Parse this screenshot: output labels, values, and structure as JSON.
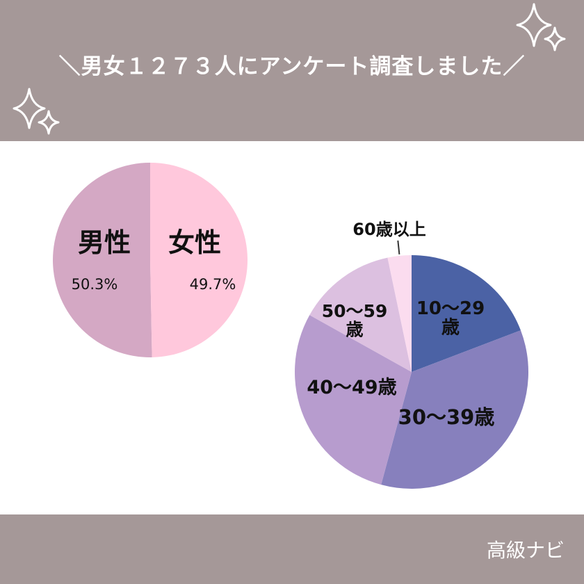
{
  "header": {
    "title": "＼男女１２７３人にアンケート調査しました／",
    "background_color": "#a59898"
  },
  "footer": {
    "brand": "高級ナビ"
  },
  "decor": {
    "icons": [
      "sparkle-icon",
      "sparkle-icon"
    ]
  },
  "chart_data": [
    {
      "type": "pie",
      "categories": [
        "男性",
        "女性"
      ],
      "values": [
        50.3,
        49.7
      ],
      "value_labels": [
        "50.3%",
        "49.7%"
      ],
      "colors": [
        "#d4a8c4",
        "#ffc8dc"
      ]
    },
    {
      "type": "pie",
      "categories": [
        "10〜29歳",
        "30〜39歳",
        "40〜49歳",
        "50〜59歳",
        "60歳以上"
      ],
      "label_lines": [
        [
          "10〜29",
          "歳"
        ],
        [
          "30〜39歳"
        ],
        [
          "40〜49歳"
        ],
        [
          "50〜59",
          "歳"
        ],
        [
          "60歳以上"
        ]
      ],
      "values": [
        19.2,
        35.0,
        28.9,
        13.6,
        3.3
      ],
      "colors": [
        "#4b62a5",
        "#8780bd",
        "#b79cce",
        "#dcc0e0",
        "#fbdcef"
      ]
    }
  ]
}
